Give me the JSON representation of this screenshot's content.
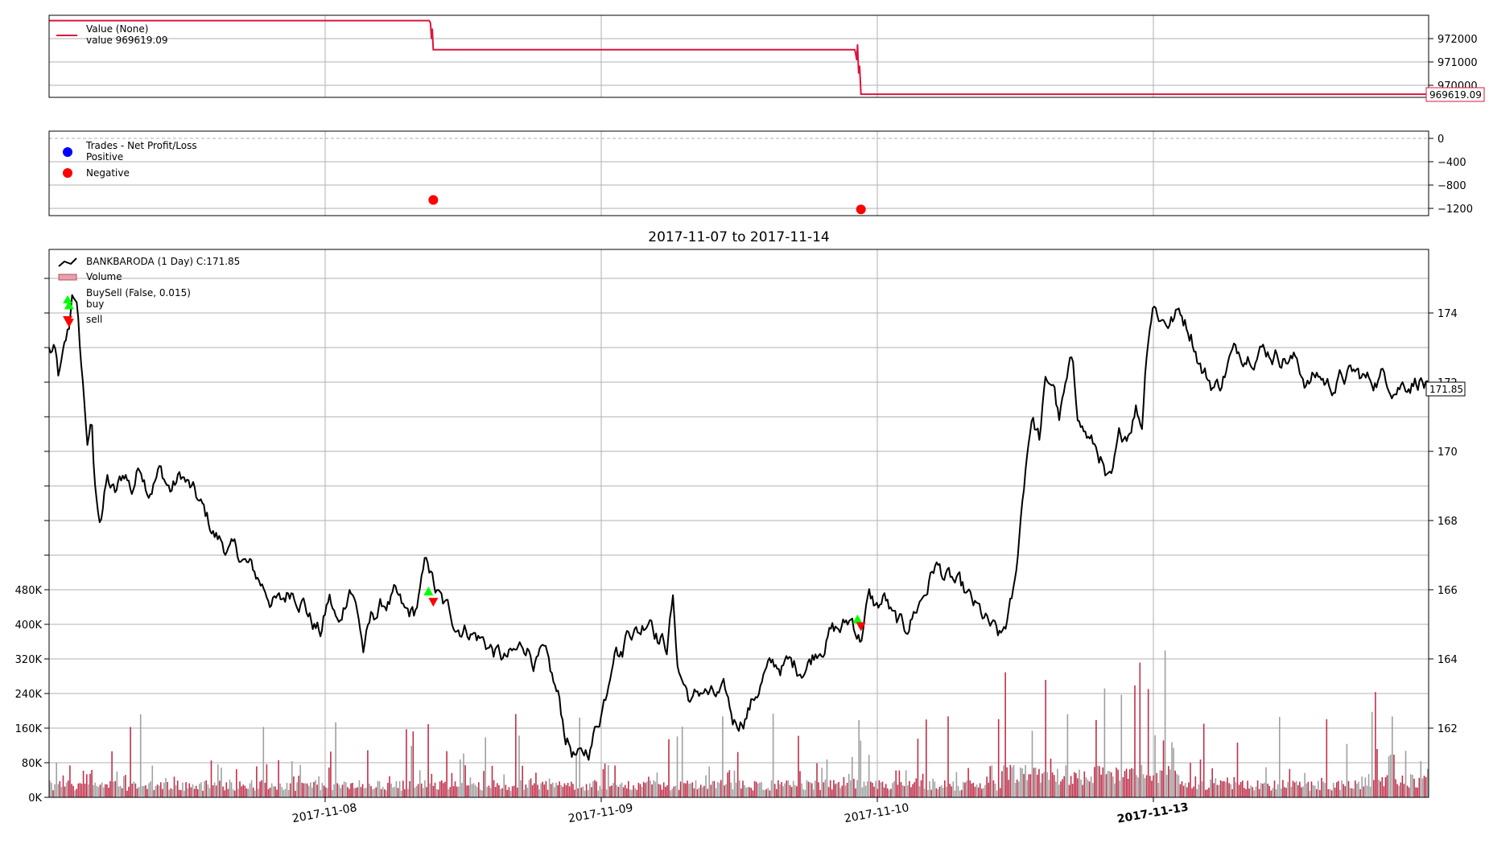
{
  "colors": {
    "value_line": "#dc143c",
    "price_line": "#000000",
    "positive": "#0000ff",
    "negative": "#ff0000",
    "buy": "#00ff00",
    "sell": "#ff0000",
    "volume_up": "#a0a0a0",
    "volume_down": "#c0304a"
  },
  "chart_data": [
    {
      "type": "line",
      "panel": "value",
      "legend": {
        "title": "Value (None)",
        "entries": [
          "value 969619.09"
        ]
      },
      "y_ticks": [
        "970000",
        "971000",
        "972000"
      ],
      "ylim": [
        969500,
        972600
      ],
      "last_value_label": "969619.09",
      "series": [
        {
          "name": "value",
          "points": [
            [
              0.0,
              972400
            ],
            [
              0.2755,
              972400
            ],
            [
              0.2765,
              972300
            ],
            [
              0.2772,
              971700
            ],
            [
              0.2778,
              972100
            ],
            [
              0.2785,
              971300
            ],
            [
              0.584,
              971300
            ],
            [
              0.5845,
              971200
            ],
            [
              0.5855,
              970900
            ],
            [
              0.586,
              971500
            ],
            [
              0.5868,
              970400
            ],
            [
              0.5875,
              970700
            ],
            [
              0.5885,
              969619.09
            ],
            [
              1.0,
              969619.09
            ]
          ]
        }
      ]
    },
    {
      "type": "scatter",
      "panel": "trades",
      "legend": {
        "title": "Trades - Net Profit/Loss",
        "entries": [
          "Positive",
          "Negative"
        ]
      },
      "y_ticks": [
        "0",
        "−400",
        "−800",
        "−1200"
      ],
      "ylim": [
        -1290,
        60
      ],
      "series": [
        {
          "name": "Negative",
          "points": [
            [
              0.2785,
              -1040
            ],
            [
              0.5885,
              -1190
            ]
          ]
        }
      ]
    },
    {
      "type": "line",
      "panel": "price",
      "title": "2017-11-07 to 2017-11-14",
      "legend": {
        "entries": [
          "BANKBARODA (1 Day) C:171.85",
          "Volume",
          "BuySell (False, 0.015)",
          "buy",
          "sell"
        ]
      },
      "x_ticks": [
        "2017-11-08",
        "2017-11-09",
        "2017-11-10",
        "2017-11-13"
      ],
      "y_ticks": [
        "162",
        "164",
        "166",
        "168",
        "170",
        "172",
        "174"
      ],
      "volume_ticks": [
        "0K",
        "80K",
        "160K",
        "240K",
        "320K",
        "400K",
        "480K"
      ],
      "ylim": [
        160.2,
        175.9
      ],
      "volume_lim": [
        0,
        480000
      ],
      "last_price_label": "171.85",
      "anchors": [
        [
          0.0,
          173.0
        ],
        [
          0.004,
          172.9
        ],
        [
          0.007,
          172.1
        ],
        [
          0.011,
          172.8
        ],
        [
          0.015,
          173.6
        ],
        [
          0.017,
          174.8
        ],
        [
          0.02,
          174.2
        ],
        [
          0.024,
          172.2
        ],
        [
          0.028,
          170.3
        ],
        [
          0.031,
          170.8
        ],
        [
          0.033,
          169.0
        ],
        [
          0.037,
          168.2
        ],
        [
          0.042,
          169.3
        ],
        [
          0.048,
          168.8
        ],
        [
          0.055,
          169.5
        ],
        [
          0.06,
          169.0
        ],
        [
          0.066,
          169.8
        ],
        [
          0.072,
          169.2
        ],
        [
          0.08,
          169.6
        ],
        [
          0.088,
          169.0
        ],
        [
          0.096,
          169.4
        ],
        [
          0.104,
          168.9
        ],
        [
          0.112,
          168.3
        ],
        [
          0.12,
          167.7
        ],
        [
          0.13,
          167.3
        ],
        [
          0.14,
          167.0
        ],
        [
          0.15,
          166.5
        ],
        [
          0.16,
          166.0
        ],
        [
          0.168,
          165.7
        ],
        [
          0.176,
          166.2
        ],
        [
          0.184,
          166.0
        ],
        [
          0.19,
          165.3
        ],
        [
          0.197,
          164.9
        ],
        [
          0.203,
          165.9
        ],
        [
          0.21,
          165.0
        ],
        [
          0.218,
          166.4
        ],
        [
          0.224,
          165.5
        ],
        [
          0.228,
          164.4
        ],
        [
          0.234,
          165.3
        ],
        [
          0.242,
          165.7
        ],
        [
          0.25,
          165.9
        ],
        [
          0.258,
          165.3
        ],
        [
          0.265,
          165.4
        ],
        [
          0.27,
          166.2
        ],
        [
          0.274,
          167.0
        ],
        [
          0.28,
          166.1
        ],
        [
          0.286,
          165.6
        ],
        [
          0.295,
          165.2
        ],
        [
          0.304,
          165.1
        ],
        [
          0.312,
          164.8
        ],
        [
          0.32,
          164.5
        ],
        [
          0.33,
          164.1
        ],
        [
          0.338,
          164.2
        ],
        [
          0.346,
          164.6
        ],
        [
          0.352,
          164.2
        ],
        [
          0.358,
          164.2
        ],
        [
          0.364,
          163.5
        ],
        [
          0.37,
          162.8
        ],
        [
          0.374,
          162.0
        ],
        [
          0.38,
          161.5
        ],
        [
          0.386,
          161.2
        ],
        [
          0.392,
          161.6
        ],
        [
          0.398,
          162.4
        ],
        [
          0.404,
          163.3
        ],
        [
          0.41,
          164.9
        ],
        [
          0.415,
          164.4
        ],
        [
          0.42,
          165.2
        ],
        [
          0.428,
          165.0
        ],
        [
          0.436,
          165.6
        ],
        [
          0.442,
          164.9
        ],
        [
          0.448,
          164.6
        ],
        [
          0.452,
          165.9
        ],
        [
          0.456,
          163.9
        ],
        [
          0.46,
          163.5
        ],
        [
          0.466,
          162.9
        ],
        [
          0.474,
          163.3
        ],
        [
          0.482,
          163.0
        ],
        [
          0.49,
          163.0
        ],
        [
          0.496,
          162.3
        ],
        [
          0.502,
          162.5
        ],
        [
          0.51,
          163.0
        ],
        [
          0.518,
          163.7
        ],
        [
          0.526,
          163.9
        ],
        [
          0.534,
          164.0
        ],
        [
          0.542,
          163.9
        ],
        [
          0.55,
          164.1
        ],
        [
          0.558,
          164.6
        ],
        [
          0.566,
          165.0
        ],
        [
          0.574,
          165.0
        ],
        [
          0.582,
          165.3
        ],
        [
          0.588,
          164.8
        ],
        [
          0.594,
          165.9
        ],
        [
          0.6,
          165.6
        ],
        [
          0.606,
          165.9
        ],
        [
          0.612,
          165.2
        ],
        [
          0.62,
          164.9
        ],
        [
          0.628,
          165.6
        ],
        [
          0.636,
          166.2
        ],
        [
          0.642,
          166.9
        ],
        [
          0.65,
          166.5
        ],
        [
          0.658,
          166.2
        ],
        [
          0.666,
          165.8
        ],
        [
          0.674,
          165.4
        ],
        [
          0.682,
          165.0
        ],
        [
          0.69,
          164.6
        ],
        [
          0.696,
          165.4
        ],
        [
          0.7,
          166.1
        ],
        [
          0.704,
          168.0
        ],
        [
          0.708,
          169.8
        ],
        [
          0.712,
          171.2
        ],
        [
          0.718,
          170.5
        ],
        [
          0.722,
          171.9
        ],
        [
          0.728,
          172.1
        ],
        [
          0.732,
          171.0
        ],
        [
          0.738,
          172.0
        ],
        [
          0.742,
          172.6
        ],
        [
          0.746,
          171.2
        ],
        [
          0.75,
          170.8
        ],
        [
          0.756,
          170.3
        ],
        [
          0.762,
          170.0
        ],
        [
          0.766,
          169.2
        ],
        [
          0.77,
          169.0
        ],
        [
          0.776,
          170.3
        ],
        [
          0.782,
          170.7
        ],
        [
          0.788,
          171.5
        ],
        [
          0.792,
          170.9
        ],
        [
          0.796,
          173.4
        ],
        [
          0.8,
          174.5
        ],
        [
          0.806,
          174.0
        ],
        [
          0.812,
          173.9
        ],
        [
          0.82,
          174.1
        ],
        [
          0.828,
          173.6
        ],
        [
          0.836,
          172.5
        ],
        [
          0.842,
          172.1
        ],
        [
          0.848,
          172.0
        ],
        [
          0.856,
          172.8
        ],
        [
          0.866,
          173.0
        ],
        [
          0.876,
          173.2
        ],
        [
          0.886,
          173.0
        ],
        [
          0.896,
          172.9
        ],
        [
          0.904,
          172.7
        ],
        [
          0.912,
          172.1
        ],
        [
          0.92,
          172.3
        ],
        [
          0.928,
          172.0
        ],
        [
          0.936,
          172.2
        ],
        [
          0.946,
          172.3
        ],
        [
          0.956,
          172.1
        ],
        [
          0.966,
          172.3
        ],
        [
          0.976,
          172.1
        ],
        [
          0.986,
          172.2
        ],
        [
          0.994,
          172.3
        ],
        [
          1.0,
          171.85
        ]
      ],
      "markers": [
        {
          "type": "buy",
          "x": 0.0145,
          "y": 174.3
        },
        {
          "type": "sell",
          "x": 0.0145,
          "y": 173.8
        },
        {
          "type": "buy",
          "x": 0.275,
          "y": 166.1
        },
        {
          "type": "sell",
          "x": 0.2785,
          "y": 165.8
        },
        {
          "type": "buy",
          "x": 0.586,
          "y": 165.3
        },
        {
          "type": "sell",
          "x": 0.5885,
          "y": 165.1
        }
      ]
    }
  ]
}
